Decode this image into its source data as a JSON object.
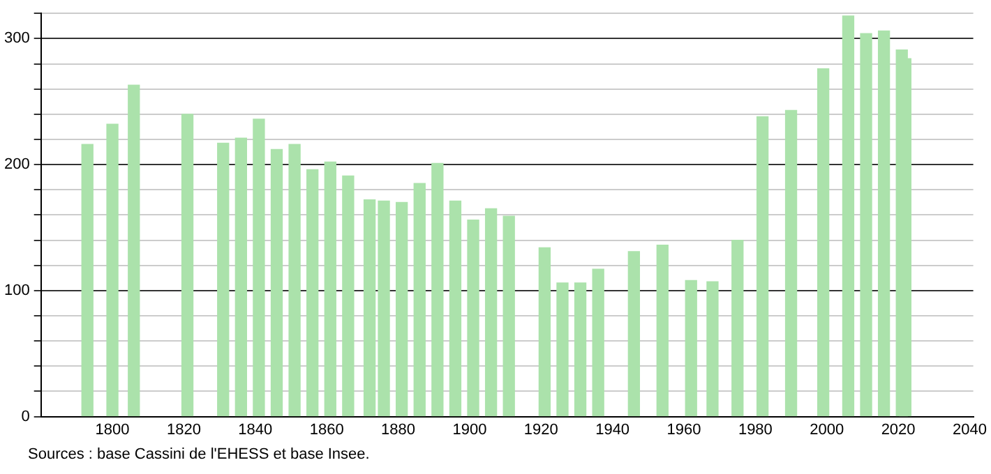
{
  "chart_data": {
    "type": "bar",
    "x": [
      1793,
      1800,
      1806,
      1821,
      1831,
      1836,
      1841,
      1846,
      1851,
      1856,
      1861,
      1866,
      1872,
      1876,
      1881,
      1886,
      1891,
      1896,
      1901,
      1906,
      1911,
      1921,
      1926,
      1931,
      1936,
      1946,
      1954,
      1962,
      1968,
      1975,
      1982,
      1990,
      1999,
      2006,
      2011,
      2016,
      2021,
      2022
    ],
    "values": [
      216,
      232,
      263,
      240,
      217,
      221,
      236,
      212,
      216,
      196,
      202,
      191,
      172,
      171,
      170,
      185,
      201,
      171,
      156,
      165,
      159,
      134,
      106,
      106,
      117,
      131,
      136,
      108,
      107,
      140,
      238,
      243,
      276,
      318,
      304,
      306,
      291,
      284
    ],
    "color": "#abe2ab",
    "xlim": [
      1780,
      2041
    ],
    "xticks": [
      1800,
      1820,
      1840,
      1860,
      1880,
      1900,
      1920,
      1940,
      1960,
      1980,
      2000,
      2020,
      2040
    ],
    "ylim": [
      0,
      320
    ],
    "yticks": [
      0,
      {
        "value": 20,
        "label": null
      },
      {
        "value": 40,
        "label": null
      },
      {
        "value": 60,
        "label": null
      },
      {
        "value": 80,
        "label": null
      },
      100,
      {
        "value": 120,
        "label": null
      },
      {
        "value": 140,
        "label": null
      },
      {
        "value": 160,
        "label": null
      },
      {
        "value": 180,
        "label": null
      },
      200,
      {
        "value": 220,
        "label": null
      },
      {
        "value": 240,
        "label": null
      },
      {
        "value": 260,
        "label": null
      },
      {
        "value": 280,
        "label": null
      },
      300,
      {
        "value": 320,
        "label": null
      }
    ],
    "grid": "y",
    "annotations": [
      "Sources : base Cassini de l'EHESS et base Insee."
    ]
  }
}
